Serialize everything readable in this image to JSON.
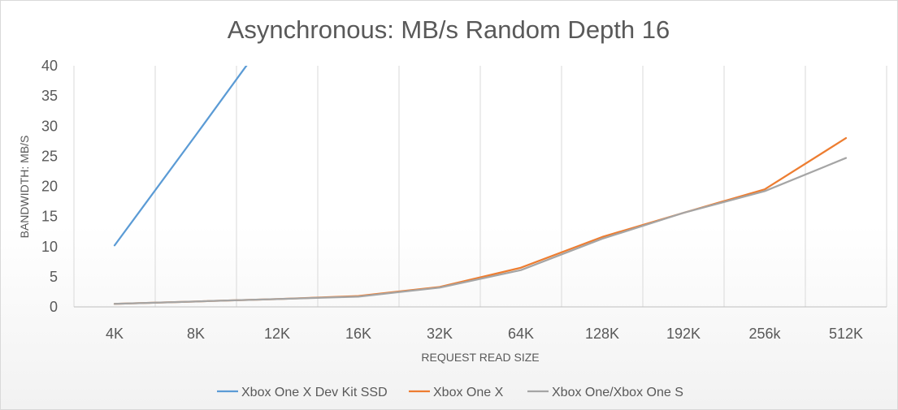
{
  "chart_data": {
    "type": "line",
    "title": "Asynchronous: MB/s Random Depth 16",
    "xlabel": "REQUEST READ SIZE",
    "ylabel": "BANDWIDTH: MB/S",
    "categories": [
      "4K",
      "8K",
      "12K",
      "16K",
      "32K",
      "64K",
      "128K",
      "192K",
      "256k",
      "512K"
    ],
    "ylim": [
      0,
      40
    ],
    "yticks": [
      "0",
      "5",
      "10",
      "15",
      "20",
      "25",
      "30",
      "35",
      "40"
    ],
    "grid": "vertical",
    "legend_position": "bottom",
    "series": [
      {
        "name": "Xbox One X Dev Kit SSD",
        "color": "#5b9bd5",
        "values": [
          10.2,
          28.5,
          47.0,
          null,
          null,
          null,
          null,
          null,
          null,
          null
        ]
      },
      {
        "name": "Xbox One X",
        "color": "#ed7d31",
        "values": [
          0.5,
          0.9,
          1.3,
          1.8,
          3.3,
          6.5,
          11.6,
          15.6,
          19.5,
          28.0
        ]
      },
      {
        "name": "Xbox One/Xbox One S",
        "color": "#a5a5a5",
        "values": [
          0.5,
          0.9,
          1.3,
          1.7,
          3.2,
          6.1,
          11.3,
          15.6,
          19.2,
          24.7
        ]
      }
    ]
  }
}
